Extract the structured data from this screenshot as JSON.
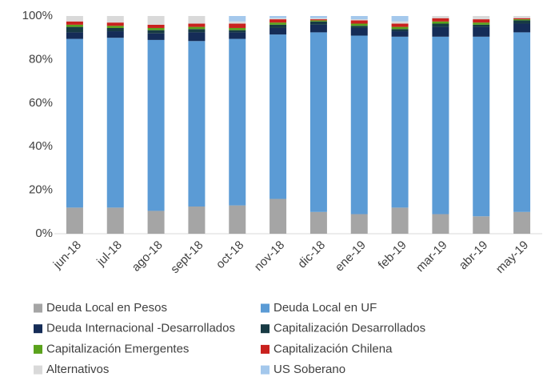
{
  "chart_data": {
    "type": "stacked_bar",
    "categories": [
      "jun-18",
      "jul-18",
      "ago-18",
      "sept-18",
      "oct-18",
      "nov-18",
      "dic-18",
      "ene-19",
      "feb-19",
      "mar-19",
      "abr-19",
      "may-19"
    ],
    "series": [
      {
        "name": "Deuda Local en Pesos",
        "color": "#a5a5a5",
        "values": [
          12,
          12,
          10.5,
          12.5,
          13,
          16,
          10,
          9,
          12,
          9,
          8,
          10
        ]
      },
      {
        "name": "Deuda Local en UF",
        "color": "#5b9bd5",
        "values": [
          77.5,
          78,
          78.5,
          76,
          76.5,
          75.5,
          82.5,
          82,
          78.5,
          81.5,
          82.5,
          82.5
        ]
      },
      {
        "name": "Deuda  Internacional -Desarrollados",
        "color": "#152c57",
        "values": [
          3,
          3,
          3,
          4,
          3,
          3,
          3.5,
          3.5,
          2.5,
          4.5,
          4.5,
          4
        ]
      },
      {
        "name": "Capitalización Desarrollados",
        "color": "#173a44",
        "values": [
          2.5,
          1.5,
          1.5,
          1.5,
          1,
          1.5,
          1.5,
          1,
          1,
          1.5,
          1,
          1.5
        ]
      },
      {
        "name": "Capitalización Emergentes",
        "color": "#5aa21c",
        "values": [
          1,
          1,
          1,
          1,
          1,
          1,
          0.5,
          1,
          1,
          1,
          1,
          0.5
        ]
      },
      {
        "name": "Capitalización Chilena",
        "color": "#c9211e",
        "values": [
          1.5,
          1.5,
          1.5,
          1.5,
          2,
          1.5,
          0.5,
          1.5,
          1.5,
          1.5,
          1.5,
          0.5
        ]
      },
      {
        "name": "Alternativos",
        "color": "#d9d9d9",
        "values": [
          2.5,
          3,
          4,
          3.5,
          1,
          0.5,
          0.5,
          0.5,
          1,
          1,
          1.5,
          1
        ]
      },
      {
        "name": "US Soberano",
        "color": "#a4c8ec",
        "values": [
          0,
          0,
          0,
          0,
          2.5,
          1,
          1,
          1.5,
          2.5,
          0,
          0,
          0
        ]
      }
    ],
    "ylim": [
      0,
      100
    ],
    "yticks": [
      {
        "value": 0,
        "label": "0%"
      },
      {
        "value": 20,
        "label": "20%"
      },
      {
        "value": 40,
        "label": "40%"
      },
      {
        "value": 60,
        "label": "60%"
      },
      {
        "value": 80,
        "label": "80%"
      },
      {
        "value": 100,
        "label": "100%"
      }
    ],
    "grid": false
  }
}
